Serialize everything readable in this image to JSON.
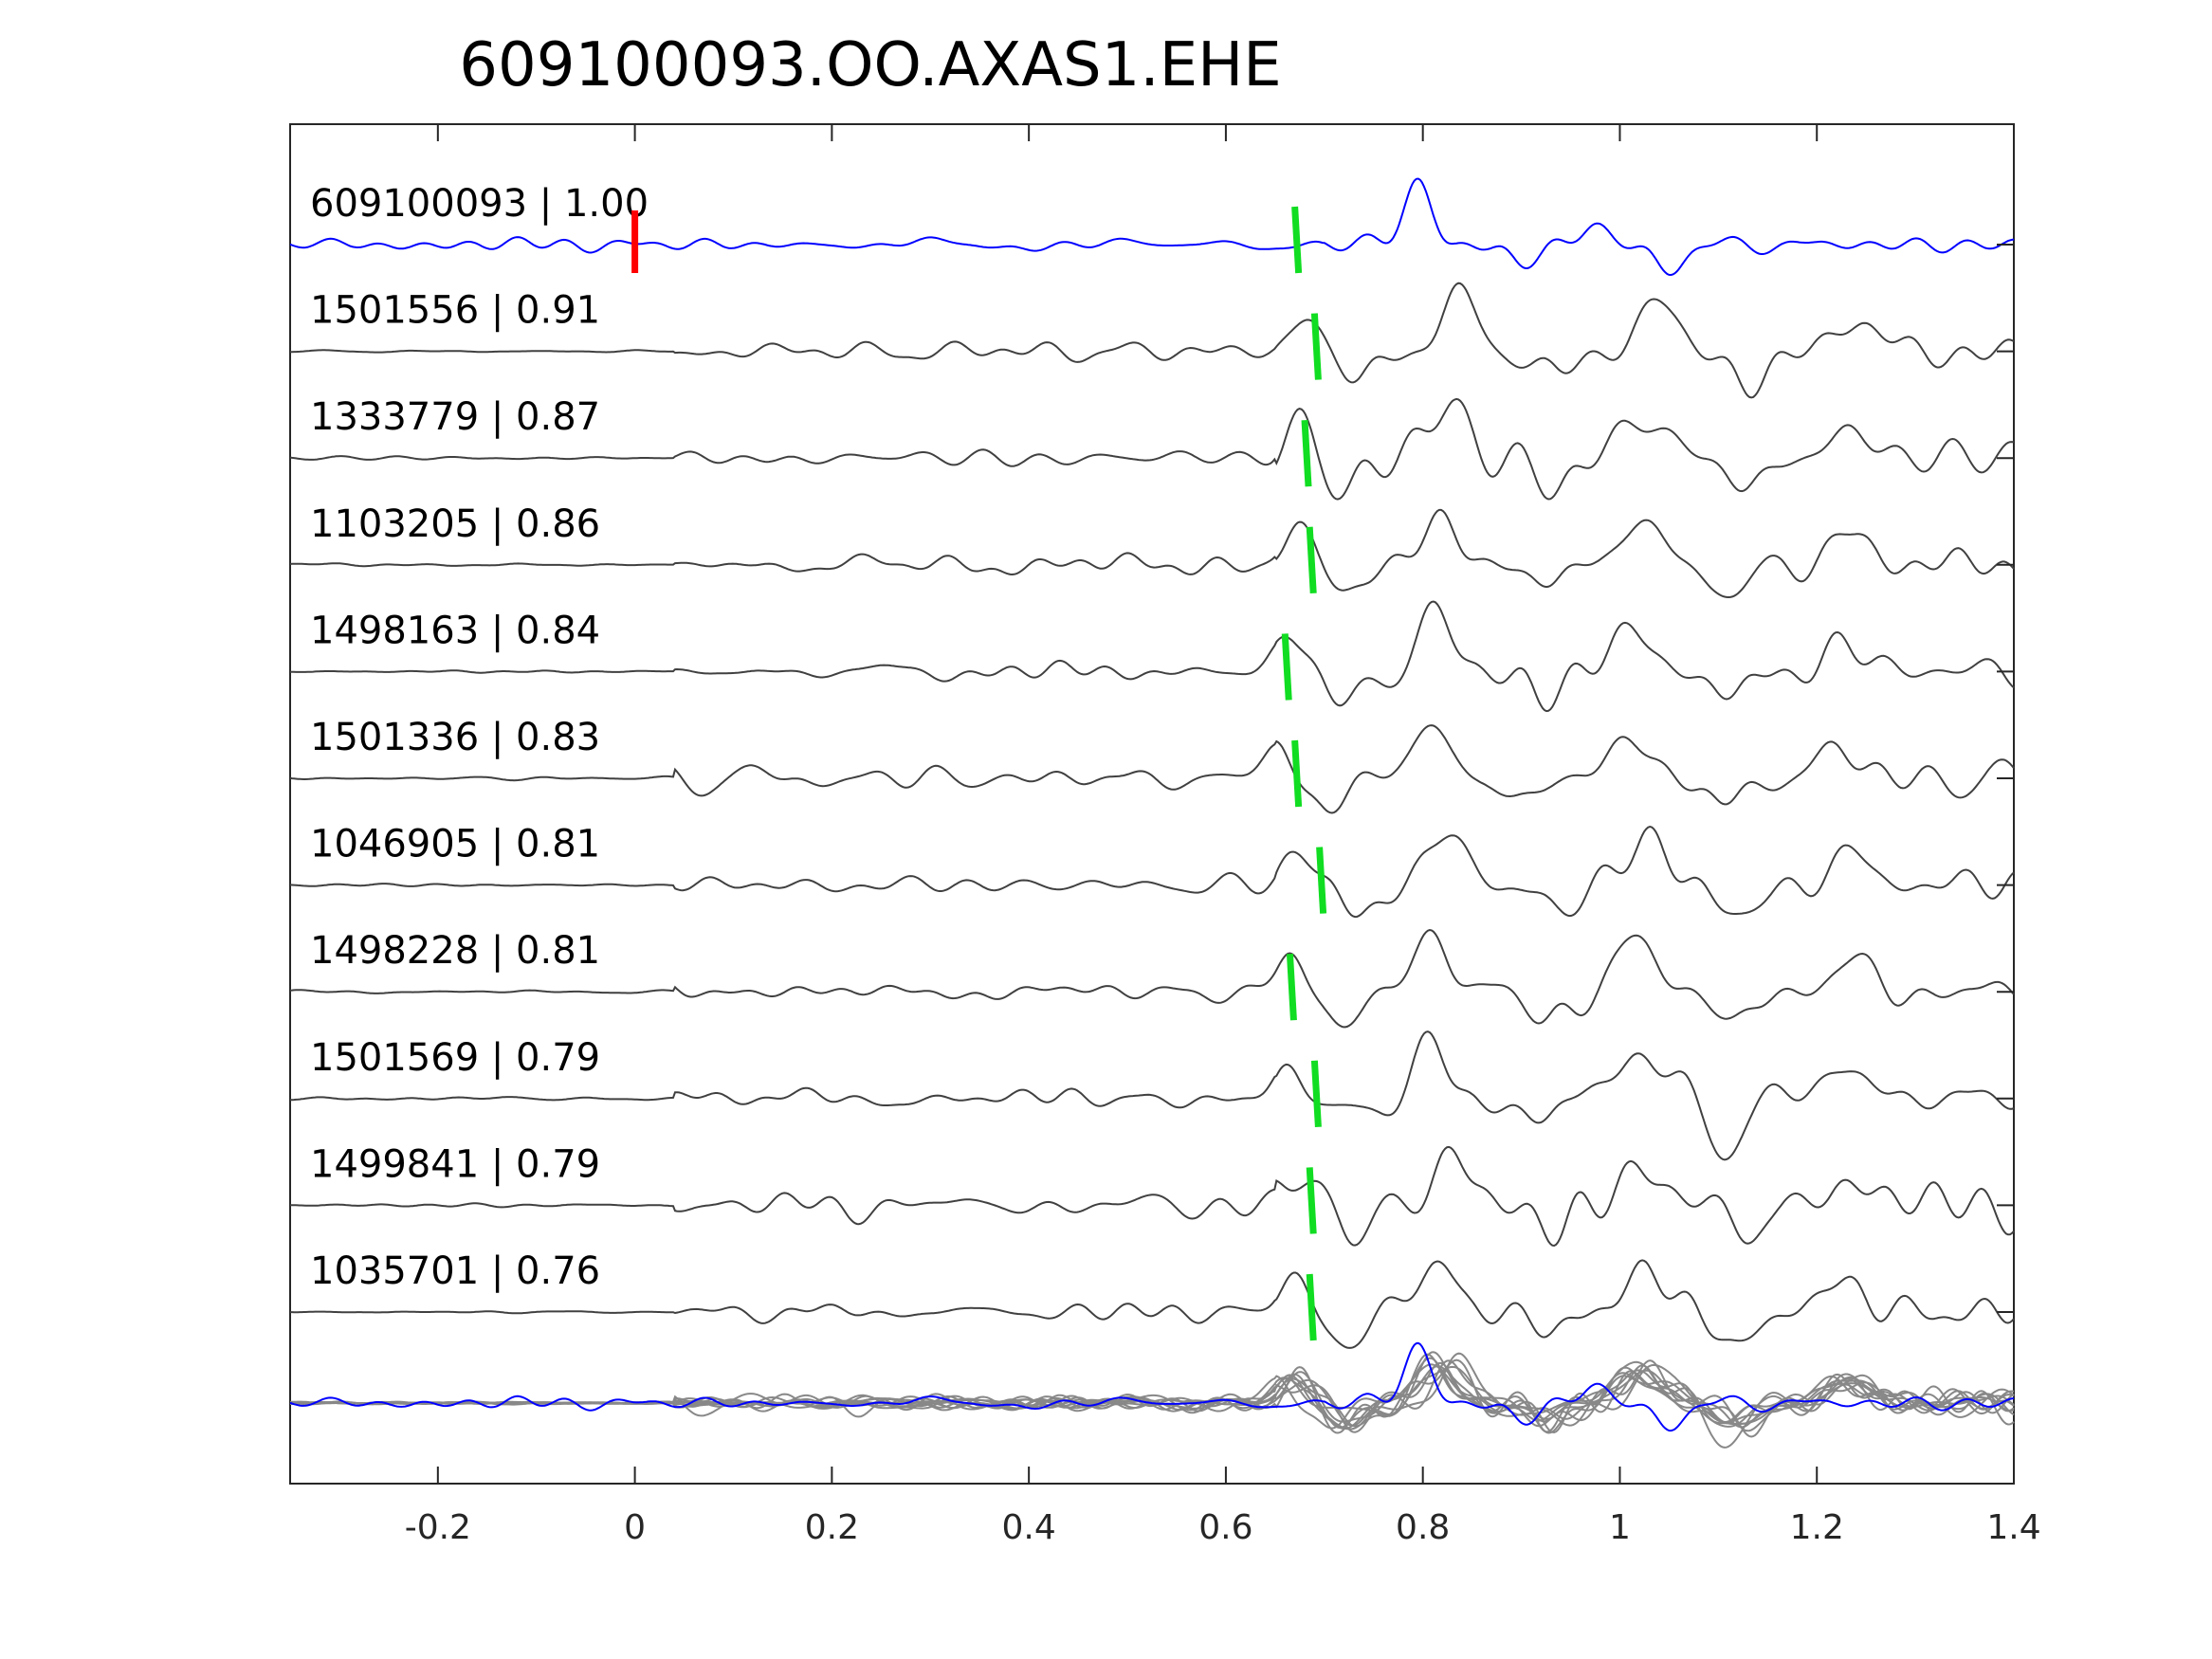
{
  "chart_data": {
    "type": "line",
    "title": "609100093.OO.AXAS1.EHE",
    "xlabel": "",
    "ylabel": "",
    "xlim": [
      -0.35,
      1.4
    ],
    "x_ticks": [
      -0.2,
      0,
      0.2,
      0.4,
      0.6,
      0.8,
      1,
      1.2,
      1.4
    ],
    "x_tick_labels": [
      "-0.2",
      "0",
      "0.2",
      "0.4",
      "0.6",
      "0.8",
      "1",
      "1.2",
      "1.4"
    ],
    "grid": false,
    "colors": {
      "target": "#0000ff",
      "neighbor": "#404040",
      "overlay_neighbor": "#888888",
      "origin_marker": "#ff0000",
      "pick_marker": "#11dd22",
      "axes": "#262626"
    },
    "traces": [
      {
        "label": "609100093 | 1.00",
        "role": "target",
        "pick": 0.67,
        "origin_marker": 0,
        "seed": 3
      },
      {
        "label": "1501556 | 0.91",
        "role": "neighbor",
        "pick": 0.69,
        "seed": 7
      },
      {
        "label": "1333779 | 0.87",
        "role": "neighbor",
        "pick": 0.68,
        "seed": 11
      },
      {
        "label": "1103205 | 0.86",
        "role": "neighbor",
        "pick": 0.685,
        "seed": 13
      },
      {
        "label": "1498163 | 0.84",
        "role": "neighbor",
        "pick": 0.66,
        "seed": 17
      },
      {
        "label": "1501336 | 0.83",
        "role": "neighbor",
        "pick": 0.67,
        "seed": 19
      },
      {
        "label": "1046905 | 0.81",
        "role": "neighbor",
        "pick": 0.695,
        "seed": 23
      },
      {
        "label": "1498228 | 0.81",
        "role": "neighbor",
        "pick": 0.665,
        "seed": 29
      },
      {
        "label": "1501569 | 0.79",
        "role": "neighbor",
        "pick": 0.69,
        "seed": 31
      },
      {
        "label": "1499841 | 0.79",
        "role": "neighbor",
        "pick": 0.685,
        "seed": 37
      },
      {
        "label": "1035701 | 0.76",
        "role": "neighbor",
        "pick": 0.685,
        "seed": 41
      }
    ],
    "overlay": {
      "description_hidden": true
    }
  }
}
